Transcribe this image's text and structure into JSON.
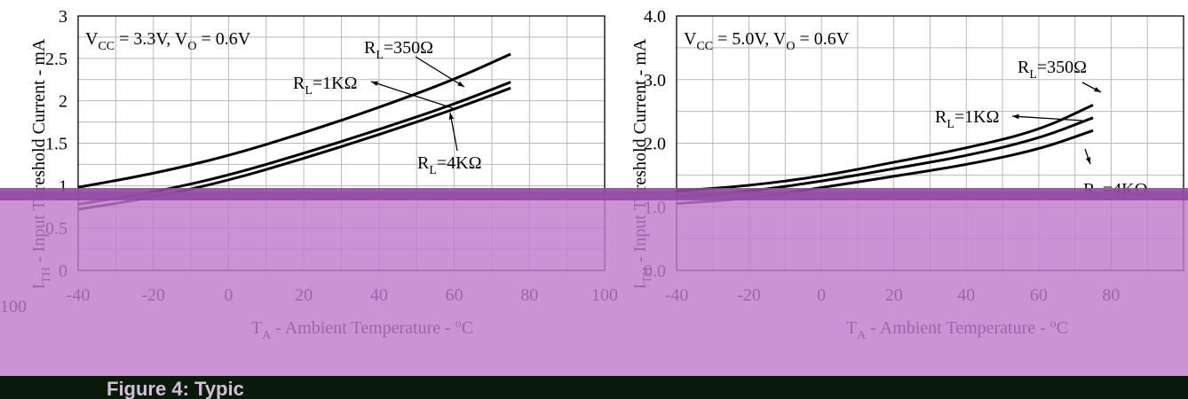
{
  "colors": {
    "overlay": "#c07bcb",
    "overlay_band": "#8e4aa0",
    "caption_bar": "#0a1a0a"
  },
  "chart_data": [
    {
      "type": "line",
      "annotation_text": [
        "V",
        "CC",
        " = 3.3V, V",
        "O",
        " = 0.6V"
      ],
      "ylabel": [
        "I",
        "TH",
        " - Input Threshold Current - mA"
      ],
      "xlabel": [
        "T",
        "A",
        " - Ambient Temperature - ",
        "o",
        "C"
      ],
      "xlim": [
        -40,
        100
      ],
      "ylim": [
        0,
        3
      ],
      "x_ticks": [
        "-40",
        "-20",
        "0",
        "20",
        "40",
        "60",
        "80",
        "100"
      ],
      "y_ticks": [
        "0",
        "0.5",
        "1",
        "1.5",
        "2",
        "2.5",
        "3"
      ],
      "left_edge_tick": "100",
      "grid": true,
      "series": [
        {
          "name": "R_L=350Ω",
          "label": [
            "R",
            "L",
            "=350Ω"
          ],
          "x": [
            -40,
            -20,
            0,
            20,
            40,
            60,
            75
          ],
          "y": [
            0.98,
            1.14,
            1.35,
            1.62,
            1.92,
            2.25,
            2.55
          ]
        },
        {
          "name": "R_L=1KΩ",
          "label": [
            "R",
            "L",
            "=1KΩ"
          ],
          "x": [
            -40,
            -20,
            0,
            20,
            40,
            60,
            75
          ],
          "y": [
            0.78,
            0.92,
            1.12,
            1.38,
            1.66,
            1.96,
            2.22
          ]
        },
        {
          "name": "R_L=4KΩ",
          "label": [
            "R",
            "L",
            "=4KΩ"
          ],
          "x": [
            -40,
            -20,
            0,
            20,
            40,
            60,
            75
          ],
          "y": [
            0.72,
            0.86,
            1.06,
            1.32,
            1.6,
            1.9,
            2.15
          ]
        }
      ]
    },
    {
      "type": "line",
      "annotation_text": [
        "V",
        "CC",
        " = 5.0V, V",
        "O",
        " = 0.6V"
      ],
      "ylabel": [
        "I",
        "TH",
        " - Input Threshold Current - mA"
      ],
      "xlabel": [
        "T",
        "A",
        " - Ambient Temperature - ",
        "o",
        "C"
      ],
      "xlim": [
        -40,
        100
      ],
      "ylim": [
        0,
        4
      ],
      "x_ticks": [
        "-40",
        "-20",
        "0",
        "20",
        "40",
        "60",
        "80"
      ],
      "y_ticks": [
        "0.0",
        "1.0",
        "2.0",
        "3.0",
        "4.0"
      ],
      "grid": true,
      "series": [
        {
          "name": "R_L=350Ω",
          "label": [
            "R",
            "L",
            "=350Ω"
          ],
          "x": [
            -40,
            -20,
            0,
            20,
            40,
            60,
            75
          ],
          "y": [
            1.25,
            1.33,
            1.48,
            1.7,
            1.92,
            2.2,
            2.6
          ]
        },
        {
          "name": "R_L=1KΩ",
          "label": [
            "R",
            "L",
            "=1KΩ"
          ],
          "x": [
            -40,
            -20,
            0,
            20,
            40,
            60,
            75
          ],
          "y": [
            1.15,
            1.24,
            1.4,
            1.6,
            1.8,
            2.07,
            2.4
          ]
        },
        {
          "name": "R_L=4KΩ",
          "label": [
            "R",
            "L",
            "=4KΩ"
          ],
          "x": [
            -40,
            -20,
            0,
            20,
            40,
            60,
            75
          ],
          "y": [
            1.05,
            1.13,
            1.3,
            1.48,
            1.66,
            1.9,
            2.2
          ]
        }
      ]
    }
  ],
  "caption": "Figure 4:    Typic"
}
